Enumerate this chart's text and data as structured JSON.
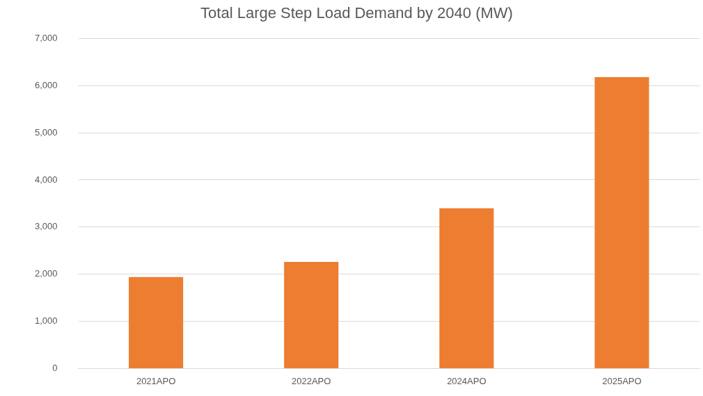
{
  "chart_data": {
    "type": "bar",
    "title": "Total Large Step Load Demand by 2040 (MW)",
    "categories": [
      "2021APO",
      "2022APO",
      "2024APO",
      "2025APO"
    ],
    "values": [
      1940,
      2260,
      3400,
      6180
    ],
    "color": "#ed7d31",
    "ylim": [
      0,
      7000
    ],
    "yticks": [
      {
        "value": 0,
        "label": "0"
      },
      {
        "value": 1000,
        "label": "1,000"
      },
      {
        "value": 2000,
        "label": "2,000"
      },
      {
        "value": 3000,
        "label": "3,000"
      },
      {
        "value": 4000,
        "label": "4,000"
      },
      {
        "value": 5000,
        "label": "5,000"
      },
      {
        "value": 6000,
        "label": "6,000"
      },
      {
        "value": 7000,
        "label": "7,000"
      }
    ],
    "grid": "y"
  }
}
